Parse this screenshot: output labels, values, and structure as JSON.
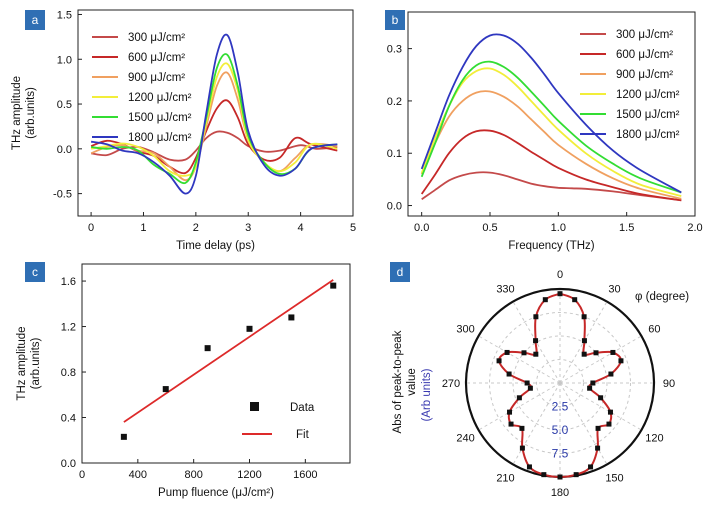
{
  "chart_data": [
    {
      "id": "a",
      "type": "line",
      "badge": "a",
      "xlabel": "Time delay (ps)",
      "ylabel_lines": [
        "THz amplitude",
        "(arb.units)"
      ],
      "xlim": [
        -0.25,
        5
      ],
      "ylim": [
        -0.75,
        1.55
      ],
      "xticks": [
        0,
        1,
        2,
        3,
        4,
        5
      ],
      "yticks": [
        -0.5,
        0.0,
        0.5,
        1.0,
        1.5
      ],
      "ytick_labels": [
        "-0.5",
        "0.0",
        "0.5",
        "1.0",
        "1.5"
      ],
      "legend_position": "top-left",
      "series": [
        {
          "name": "300 μJ/cm²",
          "color": "#c44a4a",
          "x": [
            0,
            0.3,
            0.6,
            0.9,
            1.2,
            1.5,
            1.8,
            2.0,
            2.2,
            2.4,
            2.6,
            2.8,
            3.0,
            3.3,
            3.6,
            4.0,
            4.3,
            4.7
          ],
          "y": [
            -0.05,
            -0.07,
            0.0,
            0.02,
            -0.04,
            -0.12,
            -0.12,
            -0.02,
            0.12,
            0.19,
            0.18,
            0.12,
            0.03,
            -0.03,
            -0.02,
            0.04,
            0.0,
            0.02
          ]
        },
        {
          "name": "600 μJ/cm²",
          "color": "#c62828",
          "x": [
            0,
            0.3,
            0.6,
            0.9,
            1.2,
            1.5,
            1.8,
            2.0,
            2.2,
            2.4,
            2.6,
            2.8,
            3.0,
            3.3,
            3.6,
            3.9,
            4.2,
            4.7
          ],
          "y": [
            0.03,
            0.09,
            0.05,
            -0.03,
            -0.08,
            -0.2,
            -0.27,
            -0.1,
            0.2,
            0.45,
            0.54,
            0.35,
            0.05,
            -0.12,
            -0.1,
            0.12,
            0.05,
            -0.02
          ]
        },
        {
          "name": "900 μJ/cm²",
          "color": "#f0a060",
          "x": [
            0,
            0.3,
            0.6,
            0.9,
            1.2,
            1.5,
            1.8,
            2.0,
            2.2,
            2.4,
            2.6,
            2.8,
            3.0,
            3.3,
            3.6,
            3.9,
            4.2,
            4.7
          ],
          "y": [
            -0.05,
            0.02,
            0.04,
            -0.02,
            -0.05,
            -0.2,
            -0.35,
            -0.2,
            0.25,
            0.7,
            0.85,
            0.55,
            0.1,
            -0.15,
            -0.25,
            -0.1,
            0.05,
            0.03
          ]
        },
        {
          "name": "1200 μJ/cm²",
          "color": "#f2ee3a",
          "x": [
            0,
            0.3,
            0.6,
            0.9,
            1.2,
            1.5,
            1.8,
            2.0,
            2.2,
            2.4,
            2.6,
            2.8,
            3.0,
            3.3,
            3.6,
            3.9,
            4.2,
            4.7
          ],
          "y": [
            0.0,
            0.03,
            0.06,
            0.02,
            -0.08,
            -0.25,
            -0.3,
            -0.2,
            0.3,
            0.8,
            0.95,
            0.65,
            0.1,
            -0.15,
            -0.25,
            -0.15,
            0.05,
            0.0
          ]
        },
        {
          "name": "1500 μJ/cm²",
          "color": "#33dd33",
          "x": [
            0,
            0.3,
            0.6,
            0.9,
            1.2,
            1.5,
            1.8,
            2.0,
            2.2,
            2.4,
            2.6,
            2.8,
            3.0,
            3.3,
            3.6,
            3.9,
            4.2,
            4.7
          ],
          "y": [
            0.02,
            0.0,
            0.02,
            -0.02,
            -0.18,
            -0.28,
            -0.38,
            -0.15,
            0.35,
            0.9,
            1.05,
            0.7,
            0.15,
            -0.15,
            -0.28,
            -0.22,
            0.0,
            0.05
          ]
        },
        {
          "name": "1800 μJ/cm²",
          "color": "#2f37c0",
          "x": [
            0,
            0.3,
            0.6,
            0.9,
            1.2,
            1.5,
            1.8,
            2.0,
            2.2,
            2.4,
            2.6,
            2.8,
            3.0,
            3.3,
            3.6,
            3.9,
            4.2,
            4.7
          ],
          "y": [
            0.08,
            0.05,
            -0.02,
            -0.05,
            -0.15,
            -0.3,
            -0.5,
            -0.3,
            0.4,
            1.05,
            1.27,
            0.85,
            0.2,
            -0.18,
            -0.3,
            -0.22,
            0.0,
            0.05
          ]
        }
      ]
    },
    {
      "id": "b",
      "type": "line",
      "badge": "b",
      "xlabel": "Frequency (THz)",
      "xlim": [
        -0.1,
        2.0
      ],
      "ylim": [
        -0.02,
        0.37
      ],
      "xticks": [
        0.0,
        0.5,
        1.0,
        1.5,
        2.0
      ],
      "xtick_labels": [
        "0.0",
        "0.5",
        "1.0",
        "1.5",
        "2.0"
      ],
      "yticks": [
        0.0,
        0.1,
        0.2,
        0.3
      ],
      "ytick_labels": [
        "0.0",
        "0.1",
        "0.2",
        "0.3"
      ],
      "legend_position": "top-right",
      "series": [
        {
          "name": "300 μJ/cm²",
          "color": "#c44a4a",
          "x": [
            0,
            0.1,
            0.2,
            0.3,
            0.4,
            0.5,
            0.6,
            0.7,
            0.8,
            0.9,
            1.0,
            1.1,
            1.2,
            1.4,
            1.6,
            1.9
          ],
          "y": [
            0.012,
            0.03,
            0.048,
            0.058,
            0.063,
            0.063,
            0.058,
            0.05,
            0.042,
            0.037,
            0.034,
            0.033,
            0.032,
            0.027,
            0.02,
            0.01
          ]
        },
        {
          "name": "600 μJ/cm²",
          "color": "#c62828",
          "x": [
            0,
            0.1,
            0.2,
            0.3,
            0.4,
            0.5,
            0.6,
            0.7,
            0.8,
            0.9,
            1.0,
            1.2,
            1.4,
            1.6,
            1.9
          ],
          "y": [
            0.022,
            0.06,
            0.1,
            0.128,
            0.142,
            0.143,
            0.135,
            0.12,
            0.103,
            0.087,
            0.072,
            0.05,
            0.035,
            0.022,
            0.01
          ]
        },
        {
          "name": "900 μJ/cm²",
          "color": "#f0a060",
          "x": [
            0,
            0.1,
            0.2,
            0.3,
            0.4,
            0.5,
            0.6,
            0.7,
            0.8,
            0.9,
            1.0,
            1.2,
            1.4,
            1.6,
            1.9
          ],
          "y": [
            0.06,
            0.12,
            0.17,
            0.2,
            0.216,
            0.218,
            0.208,
            0.19,
            0.165,
            0.14,
            0.116,
            0.08,
            0.052,
            0.032,
            0.013
          ]
        },
        {
          "name": "1200 μJ/cm²",
          "color": "#f2ee3a",
          "x": [
            0,
            0.1,
            0.2,
            0.3,
            0.4,
            0.5,
            0.6,
            0.7,
            0.8,
            0.9,
            1.0,
            1.2,
            1.4,
            1.6,
            1.9
          ],
          "y": [
            0.062,
            0.13,
            0.19,
            0.235,
            0.257,
            0.262,
            0.25,
            0.228,
            0.2,
            0.172,
            0.145,
            0.1,
            0.066,
            0.04,
            0.018
          ]
        },
        {
          "name": "1500 μJ/cm²",
          "color": "#33dd33",
          "x": [
            0,
            0.1,
            0.2,
            0.3,
            0.4,
            0.5,
            0.6,
            0.7,
            0.8,
            0.9,
            1.0,
            1.2,
            1.4,
            1.6,
            1.9
          ],
          "y": [
            0.055,
            0.12,
            0.19,
            0.24,
            0.268,
            0.275,
            0.265,
            0.245,
            0.218,
            0.19,
            0.162,
            0.115,
            0.08,
            0.052,
            0.025
          ]
        },
        {
          "name": "1800 μJ/cm²",
          "color": "#2f37c0",
          "x": [
            0,
            0.1,
            0.2,
            0.3,
            0.4,
            0.5,
            0.6,
            0.7,
            0.8,
            0.9,
            1.0,
            1.2,
            1.4,
            1.6,
            1.9
          ],
          "y": [
            0.07,
            0.14,
            0.21,
            0.265,
            0.305,
            0.325,
            0.325,
            0.31,
            0.283,
            0.25,
            0.215,
            0.155,
            0.105,
            0.068,
            0.025
          ]
        }
      ]
    },
    {
      "id": "c",
      "type": "scatter",
      "badge": "c",
      "xlabel": "Pump fluence (μJ/cm²)",
      "ylabel_lines": [
        "THz amplitude",
        "(arb.units)"
      ],
      "xlim": [
        0,
        1920
      ],
      "ylim": [
        0,
        1.75
      ],
      "xticks": [
        0,
        400,
        800,
        1200,
        1600
      ],
      "yticks": [
        0.0,
        0.4,
        0.8,
        1.2,
        1.6
      ],
      "ytick_labels": [
        "0.0",
        "0.4",
        "0.8",
        "1.2",
        "1.6"
      ],
      "legend_position": "bottom-right",
      "data": {
        "name": "Data",
        "color": "#111111",
        "x": [
          300,
          600,
          900,
          1200,
          1500,
          1800
        ],
        "y": [
          0.23,
          0.65,
          1.01,
          1.18,
          1.28,
          1.56
        ]
      },
      "fit": {
        "name": "Fit",
        "color": "#dd2a2a",
        "x": [
          300,
          1800
        ],
        "y": [
          0.36,
          1.61
        ]
      }
    },
    {
      "id": "d",
      "type": "polar",
      "badge": "d",
      "angle_label": "φ (degree)",
      "radial_label_lines": [
        "Abs of peak-to-peak",
        "value"
      ],
      "radial_units": "(Arb units)",
      "radial_units_color": "#3a3ab0",
      "rmax": 10,
      "rticks": [
        2.5,
        5.0,
        7.5
      ],
      "rtick_labels": [
        "2.5",
        "5.0",
        "7.5"
      ],
      "angle_ticks": [
        0,
        30,
        60,
        90,
        120,
        150,
        180,
        210,
        240,
        270,
        300,
        330
      ],
      "angle_tick_labels": [
        "0",
        "30",
        "60",
        "90",
        "120",
        "150",
        "180",
        "210",
        "240",
        "270",
        "300",
        "330"
      ],
      "fit_color": "#c62828",
      "marker_color": "#111111",
      "angles_deg": [
        0,
        10,
        20,
        30,
        40,
        50,
        60,
        70,
        80,
        90,
        100,
        110,
        120,
        130,
        140,
        150,
        160,
        170,
        180,
        190,
        200,
        210,
        220,
        230,
        240,
        250,
        260,
        270,
        280,
        290,
        300,
        310,
        320,
        330,
        340,
        350
      ],
      "values": [
        9.5,
        9.0,
        7.5,
        5.2,
        4.0,
        5.0,
        6.5,
        6.9,
        5.5,
        3.5,
        3.2,
        4.6,
        6.2,
        6.8,
        6.3,
        8.0,
        9.5,
        9.9,
        10.0,
        9.9,
        9.5,
        8.0,
        6.3,
        6.8,
        6.2,
        4.6,
        3.2,
        3.5,
        5.5,
        6.9,
        6.5,
        5.0,
        4.0,
        5.2,
        7.5,
        9.0
      ]
    }
  ]
}
